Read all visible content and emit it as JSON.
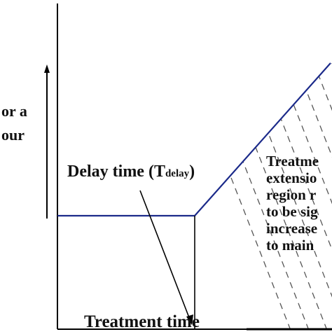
{
  "diagram": {
    "y_axis_label_lines": [
      "or a",
      "our"
    ],
    "delay_label": {
      "prefix": "Delay time (T",
      "subscript": "delay",
      "suffix": ")"
    },
    "region_label_lines": [
      "Treatme",
      "extensio",
      "region r",
      "to be sig",
      "increase",
      "to main"
    ],
    "x_axis_label": "Treatment time",
    "colors": {
      "curve": "#1b2a8a",
      "axes": "#000000",
      "hatch": "#555555",
      "text": "#111111"
    }
  }
}
